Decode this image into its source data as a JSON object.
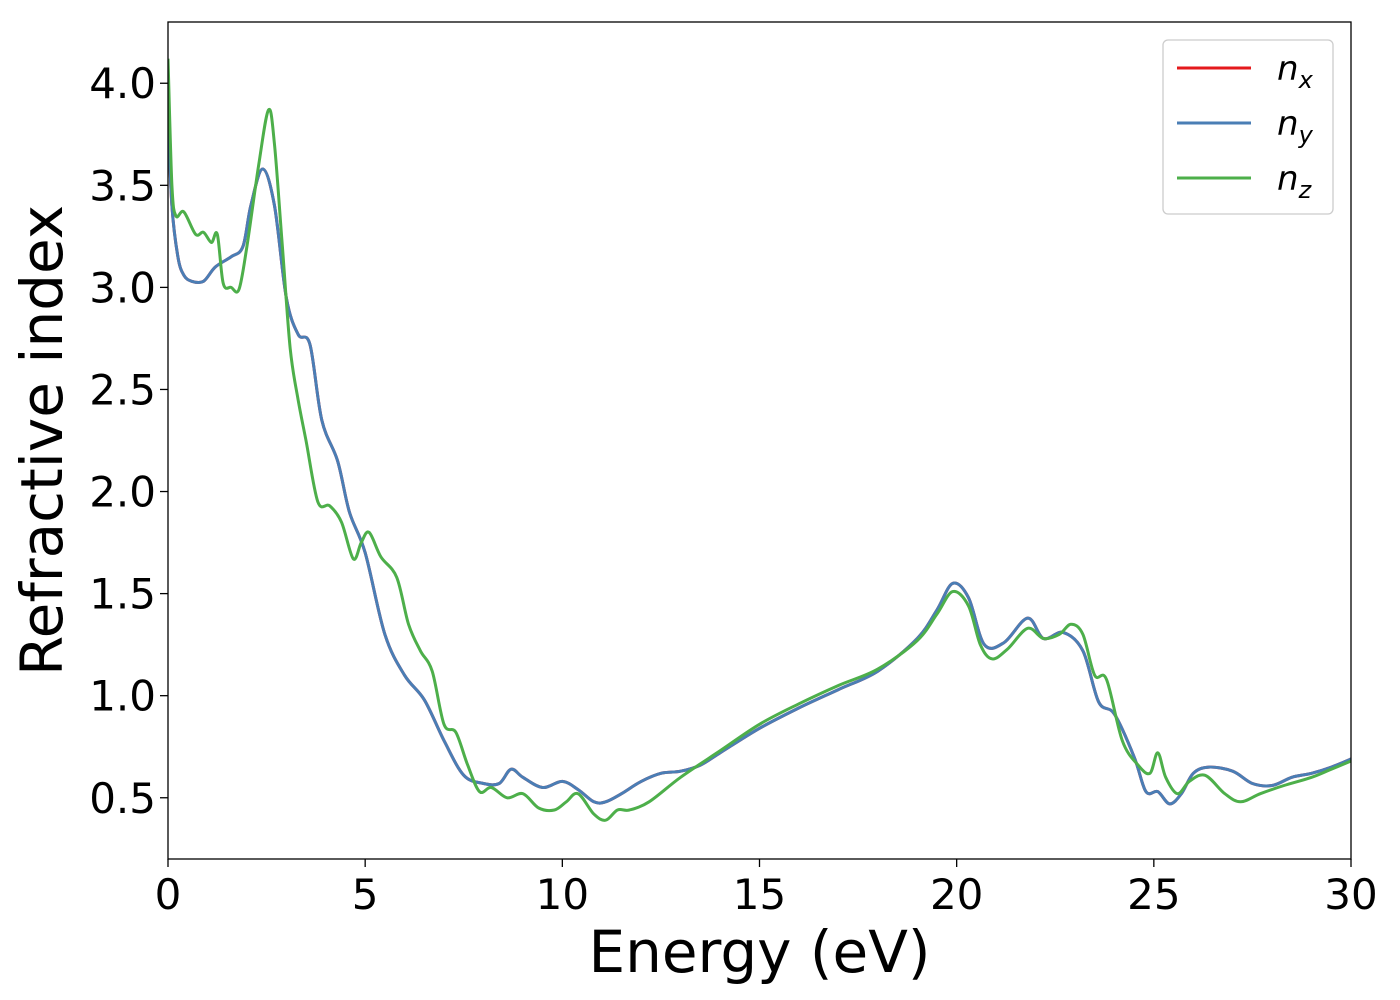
{
  "chart_data": {
    "type": "line",
    "xlabel": "Energy (eV)",
    "ylabel": "Refractive index",
    "xlim": [
      0,
      30
    ],
    "ylim": [
      0.2,
      4.3
    ],
    "xticks": [
      0,
      5,
      10,
      15,
      20,
      25,
      30
    ],
    "xtick_labels": [
      "0",
      "5",
      "10",
      "15",
      "20",
      "25",
      "30"
    ],
    "yticks": [
      0.5,
      1.0,
      1.5,
      2.0,
      2.5,
      3.0,
      3.5,
      4.0
    ],
    "ytick_labels": [
      "0.5",
      "1.0",
      "1.5",
      "2.0",
      "2.5",
      "3.0",
      "3.5",
      "4.0"
    ],
    "grid": false,
    "legend_position": "top-right",
    "series": [
      {
        "name": "n",
        "subscript": "x",
        "color": "#e41a1c",
        "x": [
          0,
          0.1,
          0.25,
          0.4,
          0.6,
          0.9,
          1.2,
          1.6,
          1.9,
          2.1,
          2.4,
          2.7,
          3.0,
          3.3,
          3.6,
          3.9,
          4.3,
          4.6,
          5.0,
          5.5,
          6.0,
          6.5,
          7.0,
          7.5,
          8.0,
          8.4,
          8.7,
          9.0,
          9.5,
          10.0,
          10.4,
          10.8,
          11.1,
          11.5,
          12.0,
          12.5,
          13.0,
          13.5,
          14.0,
          15.0,
          16.0,
          17.0,
          18.0,
          19.0,
          19.5,
          19.9,
          20.3,
          20.7,
          21.2,
          21.8,
          22.2,
          22.7,
          23.2,
          23.6,
          24.0,
          24.5,
          24.8,
          25.1,
          25.4,
          25.7,
          26.0,
          26.4,
          27.0,
          27.5,
          28.0,
          28.5,
          29.0,
          29.5,
          30.0
        ],
        "y": [
          3.84,
          3.4,
          3.15,
          3.06,
          3.03,
          3.03,
          3.1,
          3.15,
          3.2,
          3.4,
          3.58,
          3.4,
          2.95,
          2.77,
          2.72,
          2.35,
          2.15,
          1.9,
          1.7,
          1.3,
          1.1,
          0.98,
          0.78,
          0.61,
          0.57,
          0.57,
          0.64,
          0.6,
          0.55,
          0.58,
          0.54,
          0.48,
          0.48,
          0.52,
          0.58,
          0.62,
          0.63,
          0.66,
          0.72,
          0.84,
          0.94,
          1.03,
          1.12,
          1.28,
          1.42,
          1.55,
          1.48,
          1.25,
          1.26,
          1.38,
          1.28,
          1.31,
          1.22,
          0.97,
          0.91,
          0.7,
          0.53,
          0.53,
          0.47,
          0.52,
          0.62,
          0.65,
          0.63,
          0.57,
          0.56,
          0.6,
          0.62,
          0.65,
          0.69
        ]
      },
      {
        "name": "n",
        "subscript": "y",
        "color": "#4a7eb5",
        "x": [
          0,
          0.1,
          0.25,
          0.4,
          0.6,
          0.9,
          1.2,
          1.6,
          1.9,
          2.1,
          2.4,
          2.7,
          3.0,
          3.3,
          3.6,
          3.9,
          4.3,
          4.6,
          5.0,
          5.5,
          6.0,
          6.5,
          7.0,
          7.5,
          8.0,
          8.4,
          8.7,
          9.0,
          9.5,
          10.0,
          10.4,
          10.8,
          11.1,
          11.5,
          12.0,
          12.5,
          13.0,
          13.5,
          14.0,
          15.0,
          16.0,
          17.0,
          18.0,
          19.0,
          19.5,
          19.9,
          20.3,
          20.7,
          21.2,
          21.8,
          22.2,
          22.7,
          23.2,
          23.6,
          24.0,
          24.5,
          24.8,
          25.1,
          25.4,
          25.7,
          26.0,
          26.4,
          27.0,
          27.5,
          28.0,
          28.5,
          29.0,
          29.5,
          30.0
        ],
        "y": [
          3.84,
          3.4,
          3.15,
          3.06,
          3.03,
          3.03,
          3.1,
          3.15,
          3.2,
          3.4,
          3.58,
          3.4,
          2.95,
          2.77,
          2.72,
          2.35,
          2.15,
          1.9,
          1.7,
          1.3,
          1.1,
          0.98,
          0.78,
          0.61,
          0.57,
          0.57,
          0.64,
          0.6,
          0.55,
          0.58,
          0.54,
          0.48,
          0.48,
          0.52,
          0.58,
          0.62,
          0.63,
          0.66,
          0.72,
          0.84,
          0.94,
          1.03,
          1.12,
          1.28,
          1.42,
          1.55,
          1.48,
          1.25,
          1.26,
          1.38,
          1.28,
          1.31,
          1.22,
          0.97,
          0.91,
          0.7,
          0.53,
          0.53,
          0.47,
          0.52,
          0.62,
          0.65,
          0.63,
          0.57,
          0.56,
          0.6,
          0.62,
          0.65,
          0.69
        ]
      },
      {
        "name": "n",
        "subscript": "z",
        "color": "#4daf4a",
        "x": [
          0,
          0.1,
          0.2,
          0.4,
          0.7,
          0.9,
          1.1,
          1.25,
          1.4,
          1.6,
          1.8,
          2.0,
          2.3,
          2.55,
          2.7,
          2.9,
          3.1,
          3.3,
          3.5,
          3.8,
          4.1,
          4.4,
          4.7,
          4.9,
          5.1,
          5.4,
          5.8,
          6.1,
          6.4,
          6.7,
          7.0,
          7.3,
          7.6,
          7.9,
          8.2,
          8.6,
          9.0,
          9.4,
          9.8,
          10.1,
          10.4,
          10.8,
          11.1,
          11.4,
          11.7,
          12.2,
          13.0,
          14.0,
          15.0,
          16.0,
          17.0,
          18.0,
          19.0,
          19.5,
          19.9,
          20.3,
          20.6,
          20.9,
          21.3,
          21.8,
          22.2,
          22.6,
          22.9,
          23.2,
          23.5,
          23.8,
          24.2,
          24.6,
          24.9,
          25.1,
          25.3,
          25.6,
          25.9,
          26.3,
          26.8,
          27.2,
          27.7,
          28.3,
          29.0,
          29.5,
          30.0
        ],
        "y": [
          4.12,
          3.5,
          3.35,
          3.37,
          3.26,
          3.27,
          3.22,
          3.26,
          3.02,
          3.0,
          2.99,
          3.2,
          3.6,
          3.87,
          3.7,
          3.2,
          2.7,
          2.45,
          2.25,
          1.95,
          1.93,
          1.85,
          1.67,
          1.75,
          1.8,
          1.68,
          1.58,
          1.35,
          1.22,
          1.12,
          0.86,
          0.82,
          0.66,
          0.53,
          0.55,
          0.5,
          0.52,
          0.45,
          0.44,
          0.48,
          0.52,
          0.42,
          0.39,
          0.44,
          0.44,
          0.48,
          0.6,
          0.73,
          0.86,
          0.96,
          1.05,
          1.13,
          1.27,
          1.4,
          1.51,
          1.44,
          1.25,
          1.18,
          1.23,
          1.33,
          1.28,
          1.3,
          1.35,
          1.3,
          1.1,
          1.08,
          0.78,
          0.66,
          0.62,
          0.72,
          0.6,
          0.52,
          0.58,
          0.61,
          0.52,
          0.48,
          0.52,
          0.56,
          0.6,
          0.64,
          0.68
        ]
      }
    ]
  }
}
